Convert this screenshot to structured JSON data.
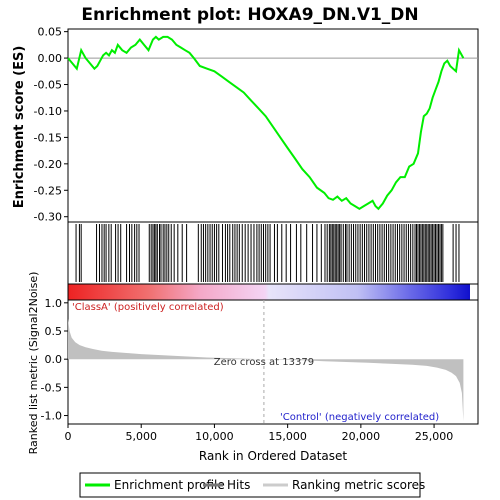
{
  "chart_data": {
    "type": "line",
    "title": "Enrichment plot: HOXA9_DN.V1_DN",
    "top_panel": {
      "ylabel": "Enrichment score (ES)",
      "ylim": [
        -0.31,
        0.055
      ],
      "yticks": [
        0.05,
        0.0,
        -0.05,
        -0.1,
        -0.15,
        -0.2,
        -0.25,
        -0.3
      ],
      "ytick_labels": [
        "0.05",
        "0.00",
        "-0.05",
        "-0.10",
        "-0.15",
        "-0.20",
        "-0.25",
        "-0.30"
      ],
      "series": [
        {
          "name": "Enrichment profile",
          "color": "#00ee00",
          "x": [
            0,
            300,
            600,
            900,
            1200,
            1500,
            1800,
            2000,
            2200,
            2400,
            2600,
            2800,
            3000,
            3200,
            3400,
            3700,
            4000,
            4300,
            4600,
            4900,
            5200,
            5500,
            5800,
            6000,
            6200,
            6500,
            6800,
            7100,
            7400,
            7700,
            8000,
            8300,
            8600,
            9000,
            9500,
            10000,
            10500,
            11000,
            11500,
            12000,
            12500,
            13000,
            13500,
            14000,
            14500,
            15000,
            15500,
            16000,
            16500,
            17000,
            17500,
            17800,
            18100,
            18400,
            18700,
            19000,
            19300,
            19600,
            19900,
            20200,
            20500,
            20800,
            21000,
            21200,
            21500,
            21800,
            22100,
            22400,
            22700,
            23000,
            23300,
            23600,
            23900,
            24100,
            24300,
            24500,
            24700,
            24900,
            25100,
            25300,
            25500,
            25700,
            25900,
            26100,
            26300,
            26500,
            26700,
            27000
          ],
          "y": [
            0.0,
            -0.01,
            -0.02,
            0.015,
            0.0,
            -0.01,
            -0.02,
            -0.015,
            -0.005,
            0.005,
            0.01,
            0.005,
            0.015,
            0.01,
            0.025,
            0.015,
            0.01,
            0.02,
            0.025,
            0.035,
            0.025,
            0.015,
            0.035,
            0.04,
            0.035,
            0.04,
            0.04,
            0.035,
            0.025,
            0.02,
            0.015,
            0.01,
            0.0,
            -0.015,
            -0.02,
            -0.025,
            -0.035,
            -0.045,
            -0.055,
            -0.065,
            -0.08,
            -0.095,
            -0.11,
            -0.13,
            -0.15,
            -0.17,
            -0.19,
            -0.21,
            -0.225,
            -0.245,
            -0.255,
            -0.265,
            -0.268,
            -0.262,
            -0.27,
            -0.265,
            -0.275,
            -0.28,
            -0.285,
            -0.28,
            -0.275,
            -0.27,
            -0.28,
            -0.285,
            -0.275,
            -0.26,
            -0.25,
            -0.235,
            -0.225,
            -0.225,
            -0.205,
            -0.2,
            -0.18,
            -0.14,
            -0.11,
            -0.105,
            -0.095,
            -0.075,
            -0.06,
            -0.045,
            -0.025,
            -0.01,
            -0.005,
            -0.015,
            -0.02,
            -0.025,
            0.015,
            0.0
          ]
        }
      ]
    },
    "hits_panel": {
      "name": "Hits",
      "positions": [
        550,
        780,
        900,
        1950,
        2150,
        2320,
        2470,
        2600,
        2790,
        2950,
        3250,
        3420,
        3600,
        4000,
        4200,
        4360,
        4550,
        4700,
        4850,
        5550,
        5680,
        5800,
        5900,
        6000,
        6100,
        6250,
        6350,
        6500,
        6620,
        6750,
        6880,
        7050,
        7250,
        7500,
        7800,
        8100,
        8900,
        9100,
        9250,
        9400,
        9550,
        9700,
        9850,
        10000,
        10150,
        10300,
        10550,
        10750,
        10900,
        11050,
        11250,
        11400,
        11550,
        11700,
        11900,
        12100,
        12300,
        12500,
        12700,
        12900,
        13050,
        13200,
        13350,
        13500,
        13650,
        13800,
        14100,
        14300,
        14600,
        14900,
        15200,
        15600,
        15900,
        16300,
        16700,
        17000,
        17300,
        17550,
        17700,
        17850,
        17950,
        18050,
        18150,
        18250,
        18350,
        18450,
        18550,
        18650,
        18800,
        18950,
        19050,
        19200,
        19350,
        19500,
        19650,
        19800,
        19950,
        20100,
        20250,
        20400,
        20550,
        20700,
        20850,
        21000,
        21150,
        21300,
        21450,
        21600,
        21750,
        21900,
        22050,
        22200,
        22350,
        22500,
        22650,
        22800,
        22950,
        23100,
        23250,
        23400,
        23550,
        23700,
        23800,
        23900,
        24000,
        24100,
        24200,
        24300,
        24400,
        24500,
        24600,
        24700,
        24800,
        24900,
        25000,
        25100,
        25200,
        25300,
        25400,
        25500,
        25600,
        26300,
        26500,
        26700
      ]
    },
    "ranking_panel": {
      "ylabel": "Ranked list metric (Signal2Noise)",
      "ylim": [
        -1.15,
        1.05
      ],
      "yticks": [
        1.0,
        0.5,
        0.0,
        -0.5,
        -1.0
      ],
      "ytick_labels": [
        "1.0",
        "0.5",
        "0.0",
        "-0.5",
        "-1.0"
      ],
      "series_name": "Ranking metric scores",
      "x": [
        0,
        100,
        250,
        500,
        800,
        1200,
        1700,
        2300,
        3000,
        4000,
        5000,
        6500,
        8000,
        9500,
        11000,
        12500,
        13379,
        14500,
        16000,
        17500,
        19000,
        20500,
        22000,
        23500,
        24500,
        25200,
        25800,
        26200,
        26500,
        26750,
        26900,
        27000
      ],
      "y": [
        0.72,
        0.5,
        0.38,
        0.3,
        0.25,
        0.21,
        0.18,
        0.15,
        0.13,
        0.11,
        0.09,
        0.07,
        0.05,
        0.03,
        0.02,
        0.005,
        0.0,
        -0.01,
        -0.02,
        -0.035,
        -0.05,
        -0.065,
        -0.08,
        -0.1,
        -0.12,
        -0.15,
        -0.19,
        -0.24,
        -0.3,
        -0.42,
        -0.6,
        -1.1
      ],
      "zero_cross_label": "Zero cross at 13379",
      "positive_label": "'ClassA' (positively correlated)",
      "negative_label": "'Control' (negatively correlated)"
    },
    "xlabel": "Rank in Ordered Dataset",
    "xlim": [
      0,
      28000
    ],
    "xticks": [
      0,
      5000,
      10000,
      15000,
      20000,
      25000
    ],
    "xtick_labels": [
      "0",
      "5,000",
      "10,000",
      "15,000",
      "20,000",
      "25,000"
    ],
    "legend": {
      "placement": "bottom",
      "entries": [
        {
          "label": "Enrichment profile",
          "color": "#00ee00"
        },
        {
          "label": "Hits",
          "color": "#777777"
        },
        {
          "label": "Ranking metric scores",
          "color": "#cccccc"
        }
      ]
    },
    "grid": false
  }
}
